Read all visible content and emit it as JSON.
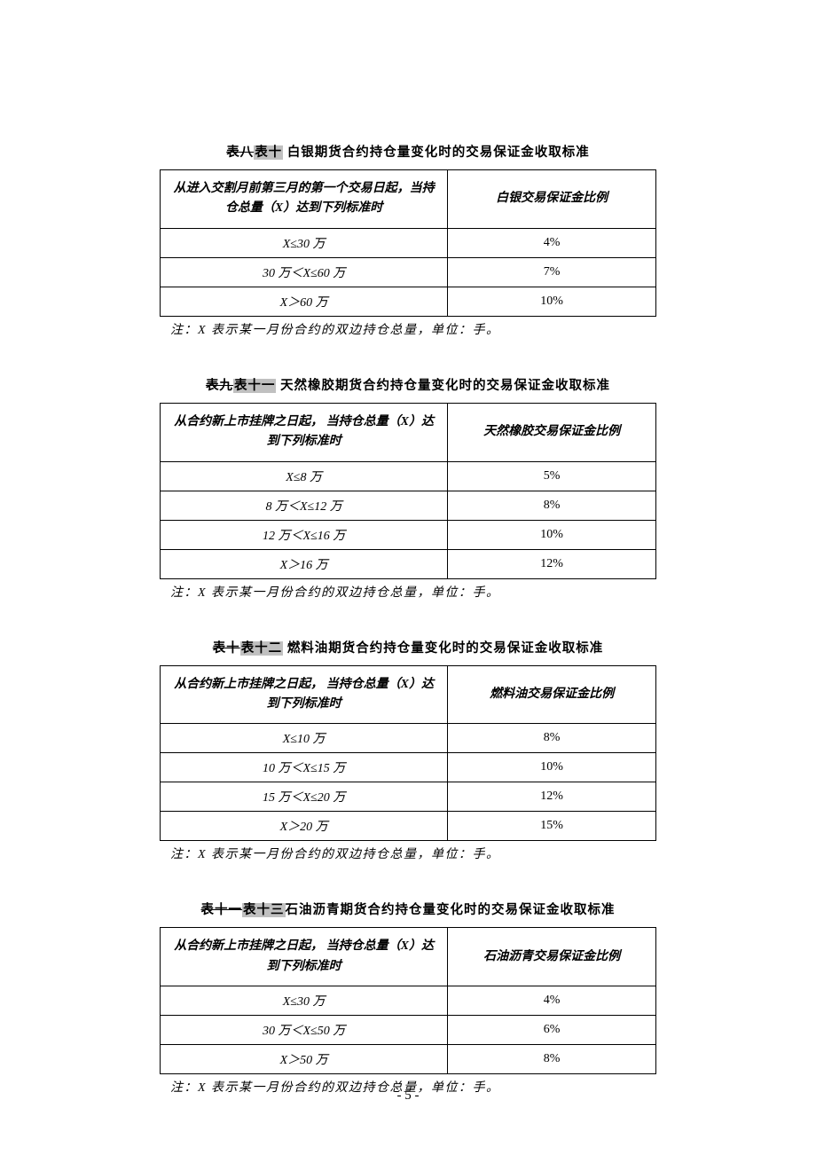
{
  "pageNumber": "- 5 -",
  "noteText": "注：X 表示某一月份合约的双边持仓总量，单位：手。",
  "sections": [
    {
      "caption": {
        "strike": "表八",
        "ins": "表十",
        "tail": "  白银期货合约持仓量变化时的交易保证金收取标准"
      },
      "headers": [
        "从进入交割月前第三月的第一个交易日起，当持仓总量（X）达到下列标准时",
        "白银交易保证金比例"
      ],
      "rows": [
        [
          "X≤30 万",
          "4%"
        ],
        [
          "30 万＜X≤60 万",
          "7%"
        ],
        [
          "X＞60 万",
          "10%"
        ]
      ]
    },
    {
      "caption": {
        "strike": "表九",
        "ins": "表十一",
        "tail": "  天然橡胶期货合约持仓量变化时的交易保证金收取标准"
      },
      "headers": [
        "从合约新上市挂牌之日起，\n当持仓总量（X）达到下列标准时",
        "天然橡胶交易保证金比例"
      ],
      "rows": [
        [
          "X≤8 万",
          "5%"
        ],
        [
          "8 万＜X≤12 万",
          "8%"
        ],
        [
          "12 万＜X≤16 万",
          "10%"
        ],
        [
          "X＞16 万",
          "12%"
        ]
      ]
    },
    {
      "caption": {
        "strike": "表十",
        "ins": "表十二",
        "tail": "   燃料油期货合约持仓量变化时的交易保证金收取标准"
      },
      "headers": [
        "从合约新上市挂牌之日起，\n当持仓总量（X）达到下列标准时",
        "燃料油交易保证金比例"
      ],
      "rows": [
        [
          "X≤10 万",
          "8%"
        ],
        [
          "10 万＜X≤15 万",
          "10%"
        ],
        [
          "15 万＜X≤20 万",
          "12%"
        ],
        [
          "X＞20 万",
          "15%"
        ]
      ]
    },
    {
      "caption": {
        "strike": "表十一",
        "ins": "表十三",
        "tail": "石油沥青期货合约持仓量变化时的交易保证金收取标准"
      },
      "headers": [
        "从合约新上市挂牌之日起，\n当持仓总量（X）达到下列标准时",
        "石油沥青交易保证金比例"
      ],
      "rows": [
        [
          "X≤30 万",
          "4%"
        ],
        [
          "30 万＜X≤50 万",
          "6%"
        ],
        [
          "X＞50 万",
          "8%"
        ]
      ]
    }
  ]
}
